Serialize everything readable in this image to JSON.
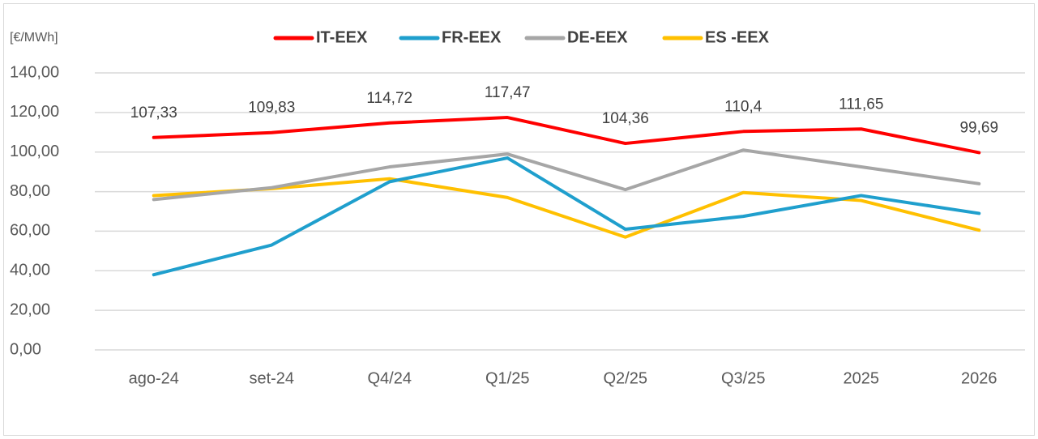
{
  "chart_data": {
    "type": "line",
    "y_label": "[€/MWh]",
    "categories": [
      "ago-24",
      "set-24",
      "Q4/24",
      "Q1/25",
      "Q2/25",
      "Q3/25",
      "2025",
      "2026"
    ],
    "series": [
      {
        "name": "IT-EEX",
        "color": "#ff0000",
        "values": [
          107.33,
          109.83,
          114.72,
          117.47,
          104.36,
          110.4,
          111.65,
          99.69
        ],
        "value_labels": [
          "107,33",
          "109,83",
          "114,72",
          "117,47",
          "104,36",
          "110,4",
          "111,65",
          "99,69"
        ]
      },
      {
        "name": "FR-EEX",
        "color": "#1f9fcd",
        "values": [
          38,
          53,
          85,
          97,
          61,
          67.5,
          78,
          69
        ]
      },
      {
        "name": "DE-EEX",
        "color": "#a6a6a6",
        "values": [
          76,
          82,
          92.5,
          99,
          81,
          101,
          92.5,
          84
        ]
      },
      {
        "name": "ES -EEX",
        "color": "#ffc000",
        "values": [
          78,
          81.5,
          86.5,
          77,
          57,
          79.5,
          75.5,
          60.5
        ]
      }
    ],
    "ylim": [
      0,
      140
    ],
    "yticks": [
      {
        "value": 0,
        "label": "0,00"
      },
      {
        "value": 20,
        "label": "20,00"
      },
      {
        "value": 40,
        "label": "40,00"
      },
      {
        "value": 60,
        "label": "60,00"
      },
      {
        "value": 80,
        "label": "80,00"
      },
      {
        "value": 100,
        "label": "100,00"
      },
      {
        "value": 120,
        "label": "120,00"
      },
      {
        "value": 140,
        "label": "140,00"
      }
    ],
    "grid": true
  }
}
